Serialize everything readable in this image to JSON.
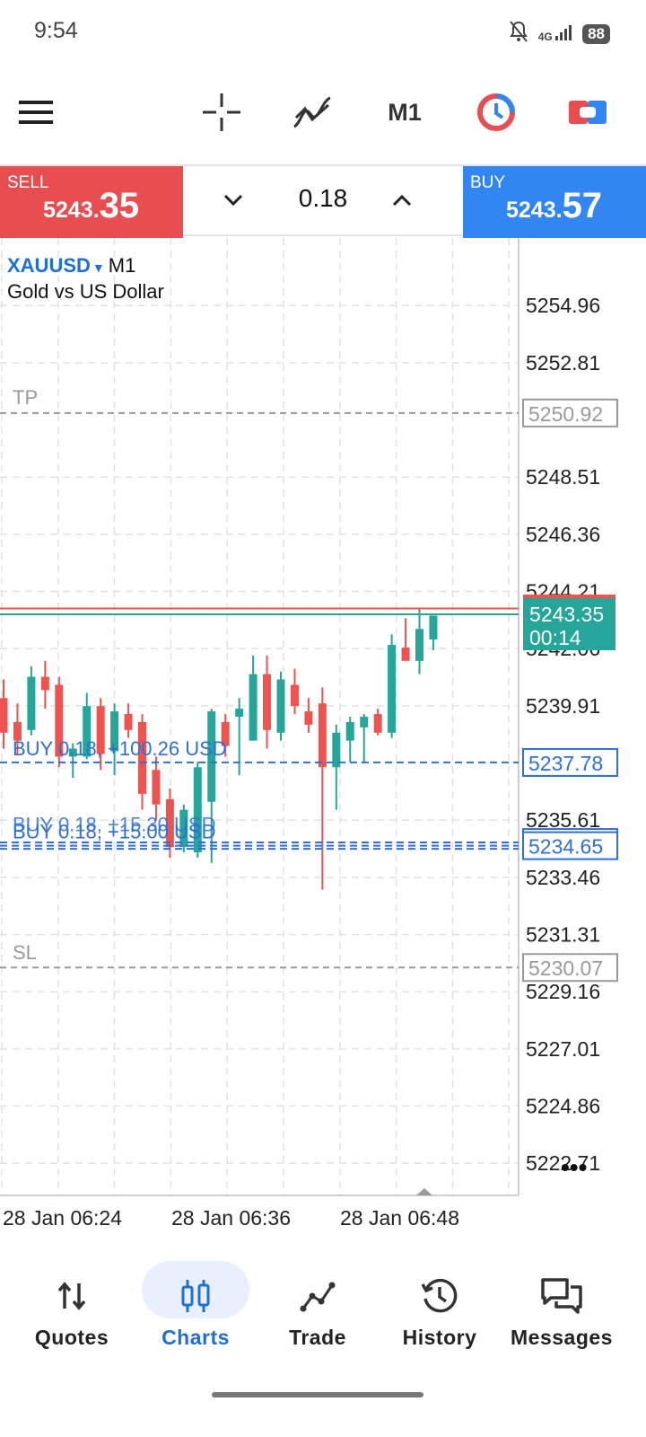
{
  "status_bar": {
    "time": "9:54",
    "network": "4G",
    "battery": "88"
  },
  "toolbar": {
    "timeframe": "M1",
    "icons": [
      "menu-icon",
      "crosshair-icon",
      "indicators-icon",
      "timeframe-selector",
      "one-click-trading-icon",
      "trade-panel-icon"
    ]
  },
  "trade": {
    "sell_label": "SELL",
    "sell_price_prefix": "5243.",
    "sell_price_big": "35",
    "buy_label": "BUY",
    "buy_price_prefix": "5243.",
    "buy_price_big": "57",
    "lot": "0.18"
  },
  "chart": {
    "symbol": "XAUUSD",
    "timeframe": "M1",
    "description": "Gold vs US Dollar",
    "tp_label": "TP",
    "sl_label": "SL",
    "order_line_1": "BUY 0.18, +100.26 USD",
    "order_line_2": "BUY 0.18, +15.00 USD",
    "order_line_3": "BUY 0.18, +15.30 USD",
    "current_price": "5243.35",
    "countdown": "00:14",
    "more": "•••"
  },
  "chart_data": {
    "type": "candlestick",
    "symbol": "XAUUSD",
    "timeframe": "M1",
    "price_axis": [
      "5254.96",
      "5252.81",
      "5248.51",
      "5246.36",
      "5244.21",
      "5242.06",
      "5239.91",
      "5235.61",
      "5233.46",
      "5231.31",
      "5229.16",
      "5227.01",
      "5224.86",
      "5222.71"
    ],
    "price_tags": {
      "tp": "5250.92",
      "sl": "5230.07",
      "order_1": "5237.78",
      "order_2": "5234.65",
      "bid": "5243.35"
    },
    "time_axis": [
      "28 Jan 06:24",
      "28 Jan 06:36",
      "28 Jan 06:48"
    ],
    "levels": {
      "tp": 5250.92,
      "sl": 5230.07,
      "order_1": 5237.78,
      "order_2": 5234.65,
      "bid": 5243.35,
      "ask": 5243.57
    },
    "ylim": [
      5221.5,
      5257.5
    ],
    "candles": [
      {
        "o": 5240.2,
        "h": 5240.9,
        "l": 5238.3,
        "c": 5238.9
      },
      {
        "o": 5239.3,
        "h": 5240.0,
        "l": 5238.1,
        "c": 5238.6
      },
      {
        "o": 5239.0,
        "h": 5241.4,
        "l": 5238.8,
        "c": 5241.0
      },
      {
        "o": 5241.0,
        "h": 5241.6,
        "l": 5239.8,
        "c": 5240.5
      },
      {
        "o": 5240.7,
        "h": 5241.0,
        "l": 5237.6,
        "c": 5238.0
      },
      {
        "o": 5238.0,
        "h": 5238.5,
        "l": 5237.2,
        "c": 5238.3
      },
      {
        "o": 5238.0,
        "h": 5240.4,
        "l": 5237.9,
        "c": 5239.9
      },
      {
        "o": 5239.9,
        "h": 5240.2,
        "l": 5237.5,
        "c": 5238.1
      },
      {
        "o": 5238.2,
        "h": 5240.0,
        "l": 5237.3,
        "c": 5239.7
      },
      {
        "o": 5239.6,
        "h": 5240.0,
        "l": 5238.7,
        "c": 5239.0
      },
      {
        "o": 5239.3,
        "h": 5239.6,
        "l": 5236.0,
        "c": 5236.6
      },
      {
        "o": 5237.5,
        "h": 5238.0,
        "l": 5235.6,
        "c": 5236.2
      },
      {
        "o": 5236.4,
        "h": 5236.8,
        "l": 5234.2,
        "c": 5234.6
      },
      {
        "o": 5234.6,
        "h": 5236.2,
        "l": 5234.4,
        "c": 5236.0
      },
      {
        "o": 5234.4,
        "h": 5237.8,
        "l": 5234.2,
        "c": 5237.6
      },
      {
        "o": 5236.3,
        "h": 5239.8,
        "l": 5234.0,
        "c": 5239.7
      },
      {
        "o": 5239.3,
        "h": 5239.6,
        "l": 5238.0,
        "c": 5238.4
      },
      {
        "o": 5239.5,
        "h": 5240.2,
        "l": 5237.3,
        "c": 5239.8
      },
      {
        "o": 5238.6,
        "h": 5241.8,
        "l": 5238.6,
        "c": 5241.1
      },
      {
        "o": 5241.1,
        "h": 5241.8,
        "l": 5238.3,
        "c": 5239.0
      },
      {
        "o": 5238.9,
        "h": 5241.2,
        "l": 5238.6,
        "c": 5240.9
      },
      {
        "o": 5240.7,
        "h": 5241.3,
        "l": 5239.6,
        "c": 5239.9
      },
      {
        "o": 5239.7,
        "h": 5240.2,
        "l": 5238.9,
        "c": 5239.2
      },
      {
        "o": 5240.0,
        "h": 5240.6,
        "l": 5233.0,
        "c": 5237.6
      },
      {
        "o": 5237.6,
        "h": 5239.2,
        "l": 5236.0,
        "c": 5238.9
      },
      {
        "o": 5238.6,
        "h": 5239.5,
        "l": 5237.8,
        "c": 5239.3
      },
      {
        "o": 5239.1,
        "h": 5239.6,
        "l": 5237.8,
        "c": 5239.5
      },
      {
        "o": 5239.6,
        "h": 5239.8,
        "l": 5238.8,
        "c": 5238.9
      },
      {
        "o": 5238.9,
        "h": 5242.6,
        "l": 5238.7,
        "c": 5242.2
      },
      {
        "o": 5242.1,
        "h": 5243.2,
        "l": 5241.7,
        "c": 5241.6
      },
      {
        "o": 5241.6,
        "h": 5243.6,
        "l": 5241.1,
        "c": 5242.8
      },
      {
        "o": 5242.4,
        "h": 5243.3,
        "l": 5242.0,
        "c": 5243.3
      }
    ]
  },
  "nav": {
    "quotes": "Quotes",
    "charts": "Charts",
    "trade": "Trade",
    "history": "History",
    "messages": "Messages"
  }
}
